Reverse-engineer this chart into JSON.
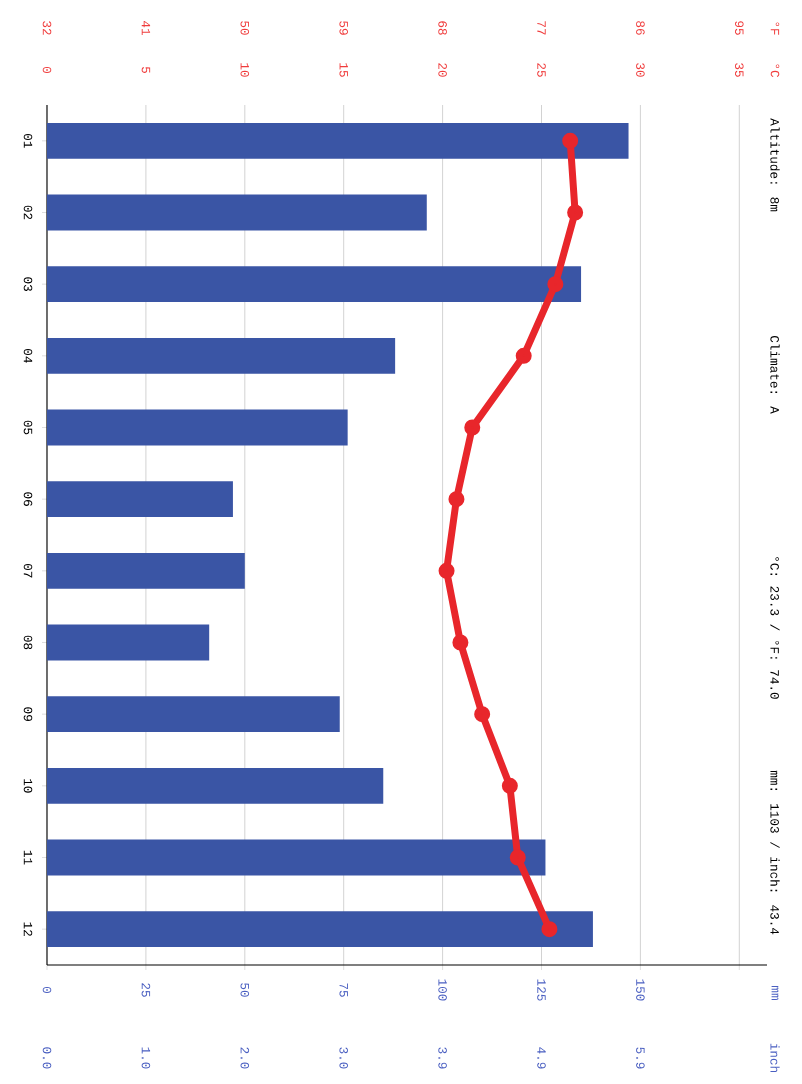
{
  "chart_data": {
    "type": "bar",
    "orientation": "horizontal",
    "categories": [
      "01",
      "02",
      "03",
      "04",
      "05",
      "06",
      "07",
      "08",
      "09",
      "10",
      "11",
      "12"
    ],
    "series": [
      {
        "color": "#3a55a5",
        "values": [
          147,
          96,
          135,
          88,
          76,
          47,
          50,
          41,
          74,
          85,
          126,
          138
        ]
      },
      {
        "type": "line",
        "axis": "x2",
        "color": "#e8262b",
        "marker": "circle",
        "values": [
          26.45,
          26.7,
          25.7,
          24.1,
          21.5,
          20.7,
          20.2,
          20.9,
          22.0,
          23.4,
          23.8,
          25.4
        ]
      }
    ],
    "xlim": [
      0,
      182
    ],
    "xticks": [
      0,
      25,
      50,
      75,
      100,
      125,
      150,
      {
        "value": 175,
        "label": null
      }
    ],
    "x2lim": [
      0,
      36.4
    ],
    "x2ticks": [
      0,
      5,
      10,
      15,
      20,
      25,
      30,
      35
    ],
    "x2label": "°C",
    "grid": "x",
    "annotations": [
      "Altitude: 8m",
      "Climate: A",
      "°C: 23.3 / °F: 74.0",
      "mm: 1103 / inch: 43.4",
      "32",
      "41",
      "50",
      "59",
      "68",
      "77",
      "86",
      "95",
      "°F",
      "mm",
      "0.0",
      "1.0",
      "2.0",
      "3.0",
      "3.9",
      "4.9",
      "5.9",
      "inch"
    ]
  }
}
